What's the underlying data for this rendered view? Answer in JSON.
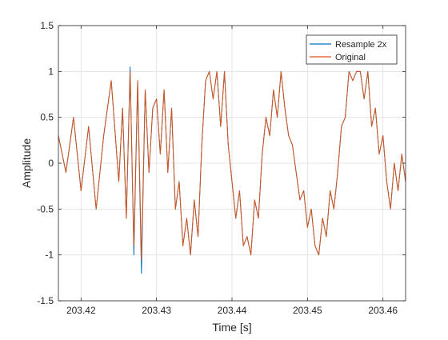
{
  "chart_data": {
    "type": "line",
    "title": "",
    "xlabel": "Time [s]",
    "ylabel": "Amplitude",
    "xlim": [
      203.417,
      203.463
    ],
    "ylim": [
      -1.5,
      1.5
    ],
    "xticks": [
      203.42,
      203.43,
      203.44,
      203.45,
      203.46
    ],
    "xtick_labels": [
      "203.42",
      "203.43",
      "203.44",
      "203.45",
      "203.46"
    ],
    "yticks": [
      -1.5,
      -1,
      -0.5,
      0,
      0.5,
      1,
      1.5
    ],
    "ytick_labels": [
      "-1.5",
      "-1",
      "-0.5",
      "0",
      "0.5",
      "1",
      "1.5"
    ],
    "grid": true,
    "legend_location": "top-right",
    "series": [
      {
        "name": "Resample 2x",
        "color": "#0072BD",
        "x": [
          203.417,
          203.418,
          203.419,
          203.42,
          203.421,
          203.422,
          203.423,
          203.424,
          203.425,
          203.4255,
          203.426,
          203.4265,
          203.427,
          203.4275,
          203.428,
          203.4285,
          203.429,
          203.4295,
          203.43,
          203.4305,
          203.431,
          203.4315,
          203.432,
          203.4325,
          203.433,
          203.4335,
          203.434,
          203.4345,
          203.435,
          203.4355,
          203.436,
          203.4365,
          203.437,
          203.4375,
          203.438,
          203.4385,
          203.439,
          203.4395,
          203.44,
          203.4405,
          203.441,
          203.4415,
          203.442,
          203.4425,
          203.443,
          203.4435,
          203.444,
          203.4445,
          203.445,
          203.4455,
          203.446,
          203.4465,
          203.447,
          203.4475,
          203.448,
          203.4485,
          203.449,
          203.4495,
          203.45,
          203.4505,
          203.451,
          203.4515,
          203.452,
          203.4525,
          203.453,
          203.4535,
          203.454,
          203.4545,
          203.455,
          203.4555,
          203.456,
          203.4565,
          203.457,
          203.4575,
          203.458,
          203.4585,
          203.459,
          203.4595,
          203.46,
          203.4605,
          203.461,
          203.4615,
          203.462,
          203.4625,
          203.463
        ],
        "y": [
          0.3,
          -0.1,
          0.5,
          -0.3,
          0.4,
          -0.5,
          0.3,
          0.9,
          -0.2,
          0.6,
          -0.6,
          1.05,
          -1.0,
          0.9,
          -1.2,
          0.8,
          -0.1,
          0.6,
          0.7,
          0.1,
          0.8,
          -0.1,
          0.6,
          -0.5,
          -0.2,
          -0.9,
          -0.6,
          -1.0,
          -0.4,
          -0.8,
          0.2,
          0.9,
          1.0,
          0.7,
          1.0,
          0.4,
          1.0,
          0.2,
          -0.2,
          -0.6,
          -0.3,
          -0.9,
          -0.8,
          -1.0,
          -0.4,
          -0.6,
          0.1,
          0.5,
          0.3,
          0.8,
          0.5,
          1.0,
          0.6,
          0.3,
          0.2,
          -0.1,
          -0.4,
          -0.3,
          -0.7,
          -0.5,
          -0.9,
          -1.0,
          -0.6,
          -0.8,
          -0.3,
          -0.5,
          -0.1,
          0.4,
          0.5,
          1.0,
          0.9,
          1.0,
          1.0,
          0.7,
          1.0,
          0.4,
          0.6,
          0.1,
          0.3,
          -0.2,
          -0.5,
          0.0,
          -0.3,
          0.1,
          -0.2
        ]
      },
      {
        "name": "Original",
        "color": "#D95319",
        "x": [
          203.417,
          203.418,
          203.419,
          203.42,
          203.421,
          203.422,
          203.423,
          203.424,
          203.425,
          203.4255,
          203.426,
          203.4265,
          203.427,
          203.4275,
          203.428,
          203.4285,
          203.429,
          203.4295,
          203.43,
          203.4305,
          203.431,
          203.4315,
          203.432,
          203.4325,
          203.433,
          203.4335,
          203.434,
          203.4345,
          203.435,
          203.4355,
          203.436,
          203.4365,
          203.437,
          203.4375,
          203.438,
          203.4385,
          203.439,
          203.4395,
          203.44,
          203.4405,
          203.441,
          203.4415,
          203.442,
          203.4425,
          203.443,
          203.4435,
          203.444,
          203.4445,
          203.445,
          203.4455,
          203.446,
          203.4465,
          203.447,
          203.4475,
          203.448,
          203.4485,
          203.449,
          203.4495,
          203.45,
          203.4505,
          203.451,
          203.4515,
          203.452,
          203.4525,
          203.453,
          203.4535,
          203.454,
          203.4545,
          203.455,
          203.4555,
          203.456,
          203.4565,
          203.457,
          203.4575,
          203.458,
          203.4585,
          203.459,
          203.4595,
          203.46,
          203.4605,
          203.461,
          203.4615,
          203.462,
          203.4625,
          203.463
        ],
        "y": [
          0.3,
          -0.1,
          0.5,
          -0.3,
          0.4,
          -0.5,
          0.3,
          0.9,
          -0.2,
          0.6,
          -0.6,
          1.0,
          -0.9,
          0.9,
          -1.05,
          0.8,
          -0.1,
          0.6,
          0.7,
          0.1,
          0.8,
          -0.1,
          0.6,
          -0.5,
          -0.2,
          -0.9,
          -0.6,
          -1.0,
          -0.4,
          -0.8,
          0.2,
          0.9,
          1.0,
          0.7,
          1.0,
          0.4,
          1.0,
          0.2,
          -0.2,
          -0.6,
          -0.3,
          -0.9,
          -0.8,
          -1.0,
          -0.4,
          -0.6,
          0.1,
          0.5,
          0.3,
          0.8,
          0.5,
          1.0,
          0.6,
          0.3,
          0.2,
          -0.1,
          -0.4,
          -0.3,
          -0.7,
          -0.5,
          -0.9,
          -1.0,
          -0.6,
          -0.8,
          -0.3,
          -0.5,
          -0.1,
          0.4,
          0.5,
          1.0,
          0.9,
          1.0,
          1.0,
          0.7,
          1.0,
          0.4,
          0.6,
          0.1,
          0.3,
          -0.2,
          -0.5,
          0.0,
          -0.3,
          0.1,
          -0.2
        ]
      }
    ]
  }
}
